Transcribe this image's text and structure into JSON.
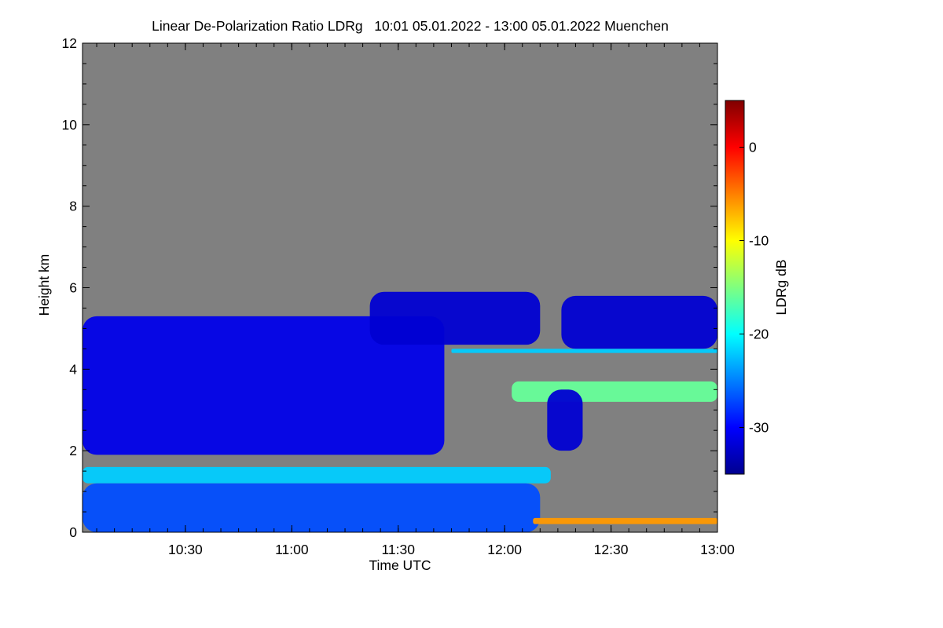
{
  "chart_data": {
    "type": "heatmap",
    "title": "Linear De-Polarization Ratio LDRg   10:01 05.01.2022 - 13:00 05.01.2022 Muenchen",
    "xlabel": "Time UTC",
    "ylabel": "Height km",
    "colorbar_label": "LDRg dB",
    "x_range": [
      "10:01",
      "13:00"
    ],
    "y_range": [
      0,
      12
    ],
    "x_ticks": [
      "10:30",
      "11:00",
      "11:30",
      "12:00",
      "12:30",
      "13:00"
    ],
    "y_ticks": [
      "0",
      "2",
      "4",
      "6",
      "8",
      "10",
      "12"
    ],
    "colorbar_range": [
      -35,
      5
    ],
    "colorbar_ticks": [
      "0",
      "-10",
      "-20",
      "-30"
    ],
    "colormap": "jet",
    "no_signal_color": "#808080",
    "features": [
      {
        "name": "main cloud layer",
        "time_start": "10:01",
        "time_end": "11:43",
        "height_bottom_km": 1.9,
        "height_top_km": 5.3,
        "ldr_db": -31
      },
      {
        "name": "upper cloud",
        "time_start": "11:22",
        "time_end": "12:10",
        "height_bottom_km": 4.6,
        "height_top_km": 5.9,
        "ldr_db": -32
      },
      {
        "name": "upper cloud east",
        "time_start": "12:16",
        "time_end": "13:00",
        "height_bottom_km": 4.5,
        "height_top_km": 5.8,
        "ldr_db": -32
      },
      {
        "name": "thin layer",
        "time_start": "11:45",
        "time_end": "13:00",
        "height_bottom_km": 4.4,
        "height_top_km": 4.5,
        "ldr_db": -22
      },
      {
        "name": "aerosol layer",
        "time_start": "12:02",
        "time_end": "13:00",
        "height_bottom_km": 3.2,
        "height_top_km": 3.7,
        "ldr_db": -16
      },
      {
        "name": "fall streak",
        "time_start": "12:12",
        "time_end": "12:22",
        "height_bottom_km": 2.0,
        "height_top_km": 3.5,
        "ldr_db": -32
      },
      {
        "name": "boundary layer top",
        "time_start": "10:01",
        "time_end": "12:13",
        "height_bottom_km": 1.2,
        "height_top_km": 1.6,
        "ldr_db": -22
      },
      {
        "name": "precipitation",
        "time_start": "10:01",
        "time_end": "12:10",
        "height_bottom_km": 0.0,
        "height_top_km": 1.2,
        "ldr_db": -27
      },
      {
        "name": "surface layer",
        "time_start": "12:08",
        "time_end": "13:00",
        "height_bottom_km": 0.2,
        "height_top_km": 0.35,
        "ldr_db": -6
      }
    ]
  }
}
